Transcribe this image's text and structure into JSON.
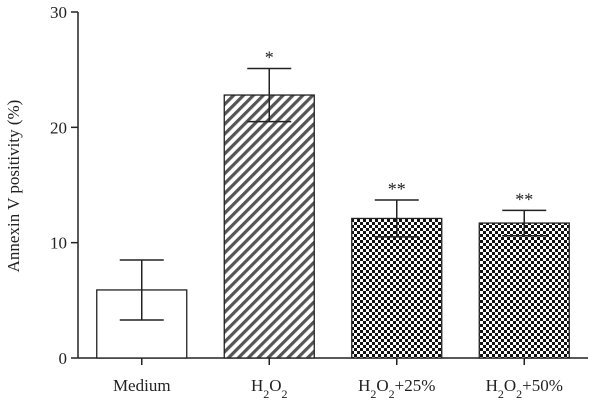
{
  "chart_data": {
    "type": "bar",
    "title": "",
    "xlabel": "",
    "ylabel": "Annexin V positivity (%)",
    "ylim": [
      0,
      30
    ],
    "yticks": [
      "0",
      "10",
      "20",
      "30"
    ],
    "grid": false,
    "categories": [
      {
        "base": "Medium",
        "sub": "",
        "suffix": "",
        "pattern": "none",
        "sig": ""
      },
      {
        "base": "H",
        "sub": "2",
        "mid": "O",
        "sub2": "2",
        "suffix": "",
        "pattern": "hatch",
        "sig": "*"
      },
      {
        "base": "H",
        "sub": "2",
        "mid": "O",
        "sub2": "2",
        "suffix": "+25%",
        "pattern": "checker",
        "sig": "**"
      },
      {
        "base": "H",
        "sub": "2",
        "mid": "O",
        "sub2": "2",
        "suffix": "+50%",
        "pattern": "checker",
        "sig": "**"
      }
    ],
    "values": [
      5.9,
      22.8,
      12.1,
      11.7
    ],
    "errors": [
      2.6,
      2.3,
      1.6,
      1.1
    ]
  }
}
